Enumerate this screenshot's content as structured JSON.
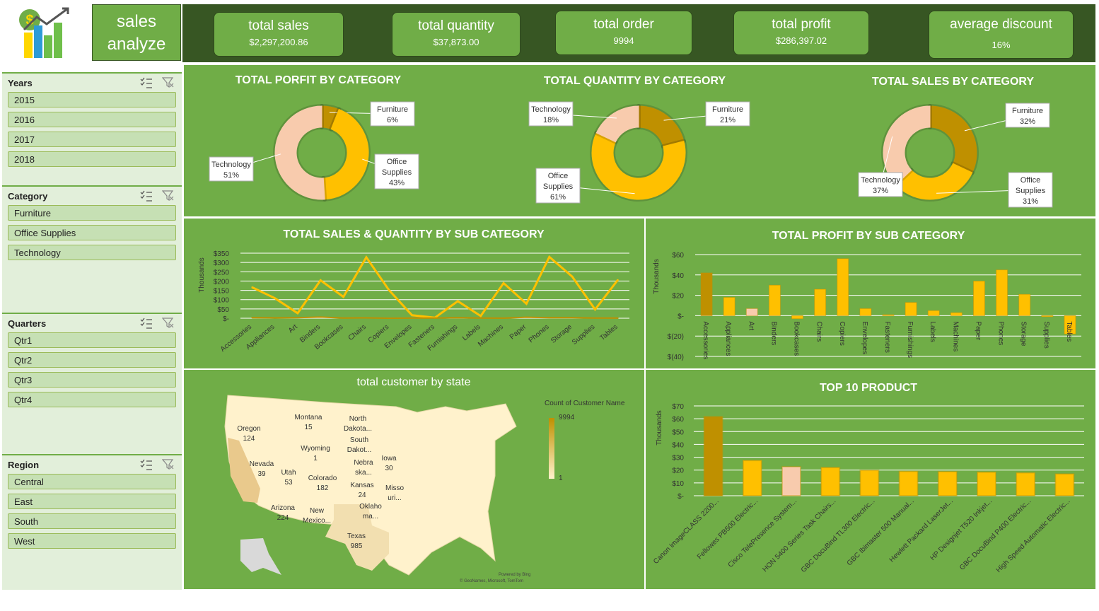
{
  "header": {
    "title_line1": "sales",
    "title_line2": "analyze"
  },
  "kpis": [
    {
      "title": "total sales",
      "value": "$2,297,200.86"
    },
    {
      "title": "total quantity",
      "value": "$37,873.00"
    },
    {
      "title": "total order",
      "value": "9994"
    },
    {
      "title": "total profit",
      "value": "$286,397.02"
    },
    {
      "title": "average discount",
      "value": "16%"
    }
  ],
  "slicers": {
    "years": {
      "title": "Years",
      "items": [
        "2015",
        "2016",
        "2017",
        "2018"
      ]
    },
    "category": {
      "title": "Category",
      "items": [
        "Furniture",
        "Office Supplies",
        "Technology"
      ]
    },
    "quarters": {
      "title": "Quarters",
      "items": [
        "Qtr1",
        "Qtr2",
        "Qtr3",
        "Qtr4"
      ]
    },
    "region": {
      "title": "Region",
      "items": [
        "Central",
        "East",
        "South",
        "West"
      ]
    }
  },
  "colors": {
    "panel_green": "#70ad47",
    "dark_green": "#375623",
    "gold": "#ffc000",
    "dark_gold": "#bf9000",
    "peach": "#f8cbad"
  },
  "chart_data": [
    {
      "id": "profit_by_category",
      "type": "pie",
      "title": "TOTAL PORFIT BY CATEGORY",
      "labels": [
        "Furniture",
        "Office Supplies",
        "Technology"
      ],
      "values": [
        6,
        43,
        51
      ],
      "label_text": [
        [
          "Furniture",
          "6%"
        ],
        [
          "Office",
          "Supplies",
          "43%"
        ],
        [
          "Technology",
          "51%"
        ]
      ]
    },
    {
      "id": "quantity_by_category",
      "type": "pie",
      "title": "TOTAL QUANTITY BY CATEGORY",
      "labels": [
        "Furniture",
        "Office Supplies",
        "Technology"
      ],
      "values": [
        21,
        61,
        18
      ],
      "label_text": [
        [
          "Furniture",
          "21%"
        ],
        [
          "Office",
          "Supplies",
          "61%"
        ],
        [
          "Technology",
          "18%"
        ]
      ]
    },
    {
      "id": "sales_by_category",
      "type": "pie",
      "title": "TOTAL SALES BY CATEGORY",
      "labels": [
        "Furniture",
        "Office Supplies",
        "Technology"
      ],
      "values": [
        32,
        31,
        37
      ],
      "label_text": [
        [
          "Furniture",
          "32%"
        ],
        [
          "Office",
          "Supplies",
          "31%"
        ],
        [
          "Technology",
          "37%"
        ]
      ]
    },
    {
      "id": "sales_qty_by_subcategory",
      "type": "line",
      "title": "TOTAL SALES & QUANTITY BY SUB CATEGORY",
      "ylabel": "Thousands",
      "categories": [
        "Accessories",
        "Appliances",
        "Art",
        "Binders",
        "Bookcases",
        "Chairs",
        "Copiers",
        "Envelopes",
        "Fasteners",
        "Furnishings",
        "Labels",
        "Machines",
        "Paper",
        "Phones",
        "Storage",
        "Supplies",
        "Tables"
      ],
      "series": [
        {
          "values": [
            167,
            108,
            27,
            204,
            115,
            328,
            150,
            16,
            3,
            92,
            12,
            189,
            78,
            330,
            224,
            47,
            207
          ]
        },
        {
          "values": [
            3,
            2,
            3,
            6,
            1,
            2,
            0.2,
            1,
            1,
            3,
            1,
            0.4,
            5,
            3,
            3,
            1,
            1
          ]
        }
      ],
      "yticks": [
        "$-",
        "$50",
        "$100",
        "$150",
        "$200",
        "$250",
        "$300",
        "$350"
      ],
      "ylim": [
        0,
        350
      ]
    },
    {
      "id": "profit_by_subcategory",
      "type": "bar",
      "title": "TOTAL PROFIT BY SUB CATEGORY",
      "ylabel": "Thousands",
      "categories": [
        "Accessories",
        "Appliances",
        "Art",
        "Binders",
        "Bookcases",
        "Chairs",
        "Copiers",
        "Envelopes",
        "Fasteners",
        "Furnishings",
        "Labels",
        "Machines",
        "Paper",
        "Phones",
        "Storage",
        "Supplies",
        "Tables"
      ],
      "values": [
        42,
        18,
        7,
        30,
        -3,
        26,
        56,
        7,
        1,
        13,
        5,
        3,
        34,
        45,
        21,
        -1,
        -18
      ],
      "yticks": [
        "$(40)",
        "$(20)",
        "$-",
        "$20",
        "$40",
        "$60"
      ],
      "ylim": [
        -40,
        60
      ]
    },
    {
      "id": "top10_product",
      "type": "bar",
      "title": "TOP 10 PRODUCT",
      "ylabel": "Thousands",
      "categories": [
        "Canon imageCLASS 2200...",
        "Fellowes PB500 Electric...",
        "Cisco TelePresence System...",
        "HON 5400 Series Task Chairs...",
        "GBC DocuBind TL300 Electric...",
        "GBC Ibimaster 500 Manual...",
        "Hewlett Packard LaserJet...",
        "HP Designjet T520 Inkjet...",
        "GBC DocuBind P400 Electric...",
        "High Speed Automatic Electric..."
      ],
      "values": [
        61.6,
        27.5,
        22.6,
        22.0,
        19.8,
        19.0,
        18.8,
        18.4,
        17.9,
        17.0
      ],
      "yticks": [
        "$-",
        "$10",
        "$20",
        "$30",
        "$40",
        "$50",
        "$60",
        "$70"
      ],
      "ylim": [
        0,
        70
      ]
    }
  ],
  "map": {
    "title": "total customer by state",
    "legend_title": "Count of Customer Name",
    "legend_max": "9994",
    "legend_min": "1",
    "attribution_1": "Powered by Bing",
    "attribution_2": "© GeoNames, Microsoft, TomTom",
    "states": [
      {
        "name": "Oregon",
        "value": "124"
      },
      {
        "name": "Montana",
        "value": "15"
      },
      {
        "name": "North Dakota...",
        "value": ""
      },
      {
        "name": "Wyoming",
        "value": "1"
      },
      {
        "name": "South Dakot...",
        "value": ""
      },
      {
        "name": "Nevada",
        "value": "39"
      },
      {
        "name": "Utah",
        "value": "53"
      },
      {
        "name": "Colorado",
        "value": "182"
      },
      {
        "name": "Nebra ska...",
        "value": ""
      },
      {
        "name": "Iowa",
        "value": "30"
      },
      {
        "name": "Kansas",
        "value": "24"
      },
      {
        "name": "Misso uri...",
        "value": ""
      },
      {
        "name": "Arizona",
        "value": "224"
      },
      {
        "name": "New Mexico...",
        "value": ""
      },
      {
        "name": "Oklaho ma...",
        "value": ""
      },
      {
        "name": "Texas",
        "value": "985"
      }
    ]
  }
}
